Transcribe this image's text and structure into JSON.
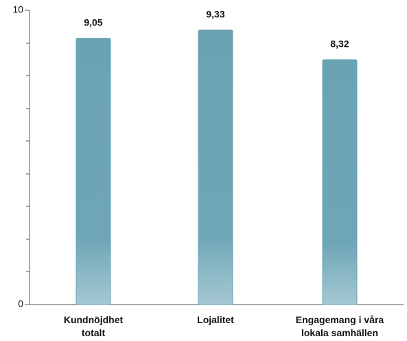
{
  "chart_data": {
    "type": "bar",
    "categories": [
      "Kundnöjdhet totalt",
      "Lojalitet",
      "Engagemang i våra lokala samhällen"
    ],
    "values": [
      9.05,
      9.33,
      8.32
    ],
    "value_labels": [
      "9,05",
      "9,33",
      "8,32"
    ],
    "color": "#6aa3b3",
    "ylim": [
      0,
      10
    ],
    "yticks": [
      0,
      10
    ],
    "grid": false
  }
}
